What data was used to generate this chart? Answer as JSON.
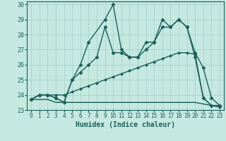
{
  "title": "",
  "xlabel": "Humidex (Indice chaleur)",
  "ylabel": "",
  "xlim": [
    -0.5,
    23.5
  ],
  "ylim": [
    23,
    30.2
  ],
  "yticks": [
    23,
    24,
    25,
    26,
    27,
    28,
    29,
    30
  ],
  "xticks": [
    0,
    1,
    2,
    3,
    4,
    5,
    6,
    7,
    8,
    9,
    10,
    11,
    12,
    13,
    14,
    15,
    16,
    17,
    18,
    19,
    20,
    21,
    22,
    23
  ],
  "bg_color": "#c5e8e0",
  "line_color": "#1a5f5a",
  "grid_color": "#aad4cc",
  "lines": [
    {
      "x": [
        0,
        1,
        2,
        3,
        4,
        5,
        6,
        7,
        9,
        10,
        11,
        12,
        13,
        14,
        15,
        16,
        17,
        18,
        19,
        20,
        21,
        22,
        23
      ],
      "y": [
        23.7,
        24.0,
        24.0,
        23.8,
        23.5,
        25.0,
        26.0,
        27.5,
        29.0,
        30.0,
        27.0,
        26.5,
        26.5,
        27.0,
        27.5,
        28.5,
        28.5,
        29.0,
        28.5,
        26.5,
        23.8,
        23.3,
        23.3
      ],
      "marker": "D",
      "markersize": 2.5,
      "linewidth": 1.0
    },
    {
      "x": [
        0,
        1,
        2,
        3,
        4,
        5,
        6,
        7,
        8,
        9,
        10,
        11,
        12,
        13,
        14,
        15,
        16,
        17,
        18,
        19,
        20,
        21,
        22,
        23
      ],
      "y": [
        23.7,
        24.0,
        24.0,
        23.8,
        23.5,
        25.0,
        25.5,
        26.0,
        26.5,
        28.5,
        26.8,
        26.8,
        26.5,
        26.5,
        27.5,
        27.5,
        29.0,
        28.5,
        29.0,
        28.5,
        26.8,
        25.8,
        23.8,
        23.3
      ],
      "marker": "D",
      "markersize": 2.5,
      "linewidth": 1.0
    },
    {
      "x": [
        0,
        1,
        2,
        3,
        4,
        5,
        6,
        7,
        8,
        9,
        10,
        11,
        12,
        13,
        14,
        15,
        16,
        17,
        18,
        19,
        20,
        21,
        22,
        23
      ],
      "y": [
        23.7,
        24.0,
        24.0,
        24.0,
        24.0,
        24.2,
        24.4,
        24.6,
        24.8,
        25.0,
        25.2,
        25.4,
        25.6,
        25.8,
        26.0,
        26.2,
        26.4,
        26.6,
        26.8,
        26.8,
        26.7,
        23.8,
        23.3,
        23.2
      ],
      "marker": "D",
      "markersize": 2.0,
      "linewidth": 1.0
    },
    {
      "x": [
        0,
        1,
        2,
        3,
        4,
        5,
        10,
        19,
        20,
        21,
        22,
        23
      ],
      "y": [
        23.7,
        23.7,
        23.7,
        23.5,
        23.5,
        23.5,
        23.5,
        23.5,
        23.5,
        23.4,
        23.3,
        23.2
      ],
      "marker": null,
      "markersize": 0,
      "linewidth": 1.0
    }
  ]
}
